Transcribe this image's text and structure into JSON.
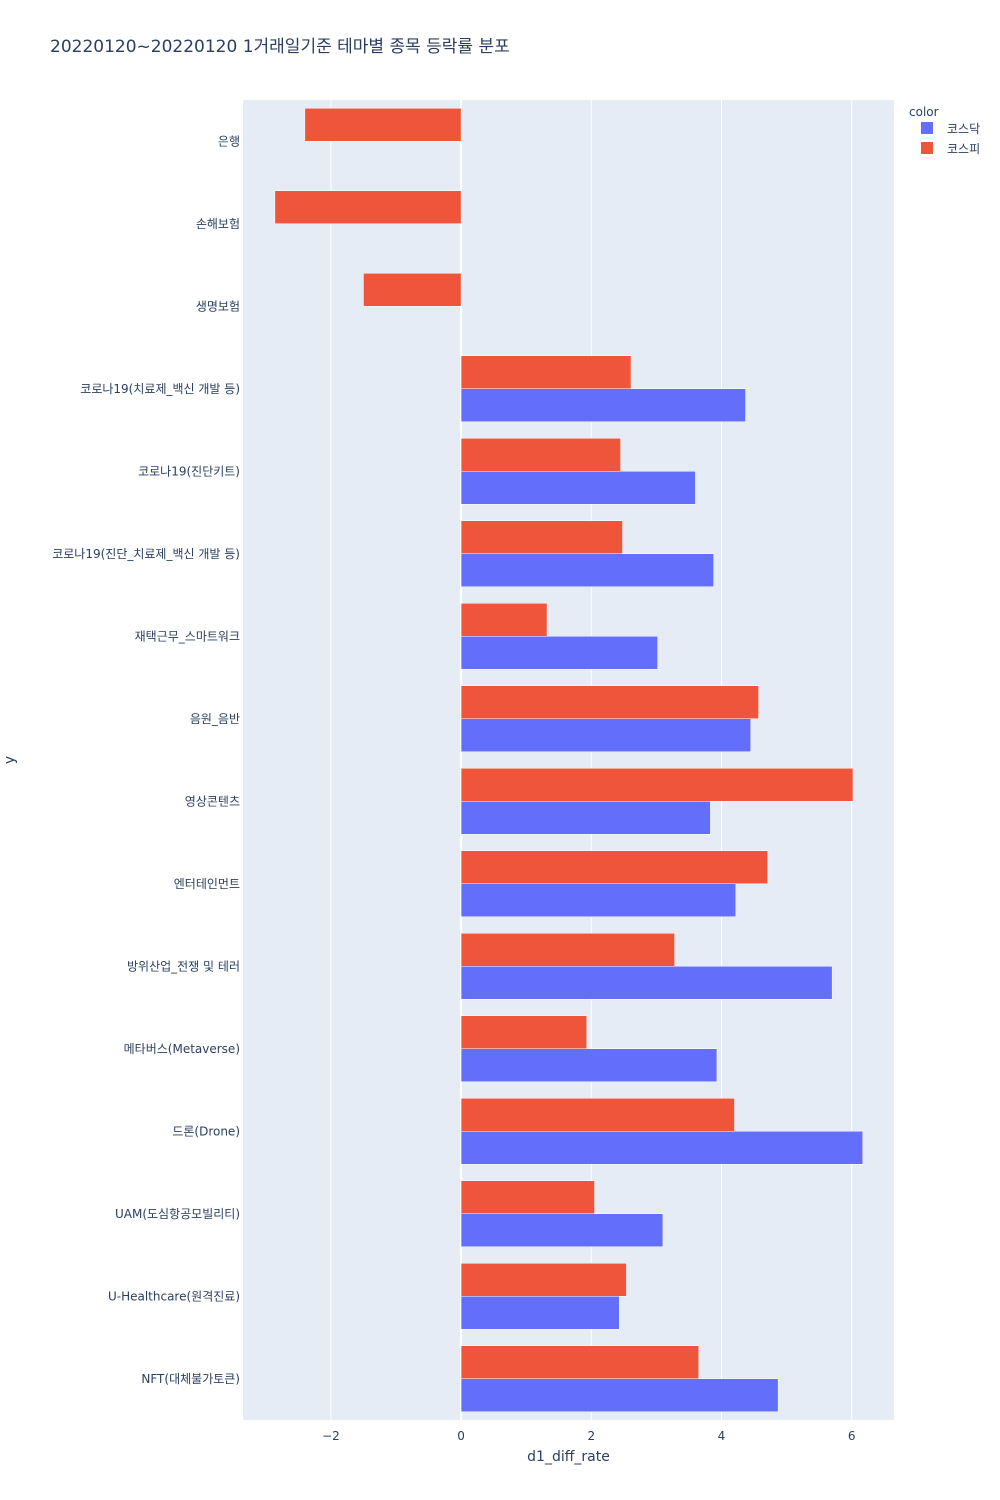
{
  "chart_data": {
    "type": "bar",
    "orientation": "horizontal",
    "barmode": "group",
    "title": "20220120~20220120 1거래일기준 테마별 종목 등락률 분포",
    "xlabel": "d1_diff_rate",
    "ylabel": "y",
    "xlim": [
      -3.35,
      6.65
    ],
    "x_ticks": [
      -2,
      0,
      2,
      4,
      6
    ],
    "x_tick_labels": [
      "−2",
      "0",
      "2",
      "4",
      "6"
    ],
    "grid": true,
    "legend": {
      "title": "color",
      "position": "top-right"
    },
    "categories": [
      "은행",
      "손해보험",
      "생명보험",
      "코로나19(치료제_백신 개발 등)",
      "코로나19(진단키트)",
      "코로나19(진단_치료제_백신 개발 등)",
      "재택근무_스마트워크",
      "음원_음반",
      "영상콘텐츠",
      "엔터테인먼트",
      "방위산업_전쟁 및 테러",
      "메타버스(Metaverse)",
      "드론(Drone)",
      "UAM(도심항공모빌리티)",
      "U-Healthcare(원격진료)",
      "NFT(대체불가토큰)"
    ],
    "series": [
      {
        "name": "코스닥",
        "color": "#636efa",
        "values": [
          null,
          null,
          null,
          4.37,
          3.6,
          3.88,
          3.02,
          4.45,
          3.83,
          4.22,
          5.7,
          3.93,
          6.17,
          3.1,
          2.43,
          4.87
        ]
      },
      {
        "name": "코스피",
        "color": "#ef553b",
        "values": [
          -2.4,
          -2.86,
          -1.5,
          2.61,
          2.45,
          2.48,
          1.32,
          4.57,
          6.02,
          4.71,
          3.28,
          1.93,
          4.2,
          2.05,
          2.54,
          3.65
        ]
      }
    ]
  }
}
